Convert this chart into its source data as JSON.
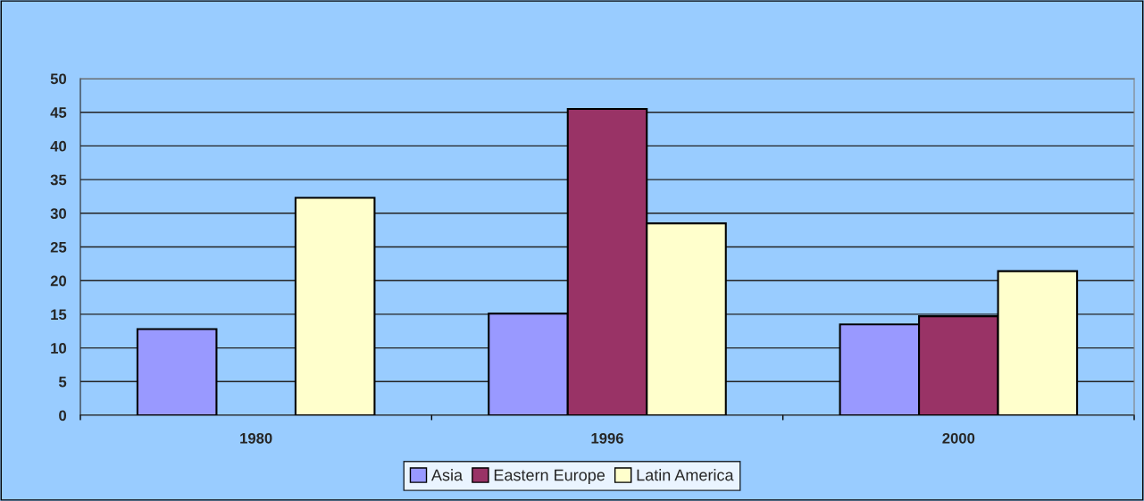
{
  "chart_data": {
    "type": "bar",
    "categories": [
      "1980",
      "1996",
      "2000"
    ],
    "series": [
      {
        "name": "Asia",
        "color": "#9999ff",
        "values": [
          12.8,
          15.1,
          13.5
        ]
      },
      {
        "name": "Eastern Europe",
        "color": "#993366",
        "values": [
          null,
          45.5,
          14.7
        ]
      },
      {
        "name": "Latin America",
        "color": "#ffffcc",
        "values": [
          32.3,
          28.5,
          21.4
        ]
      }
    ],
    "ylim": [
      0,
      50
    ],
    "yticks": [
      0,
      5,
      10,
      15,
      20,
      25,
      30,
      35,
      40,
      45,
      50
    ],
    "grid": "y",
    "legend": "bottom"
  }
}
